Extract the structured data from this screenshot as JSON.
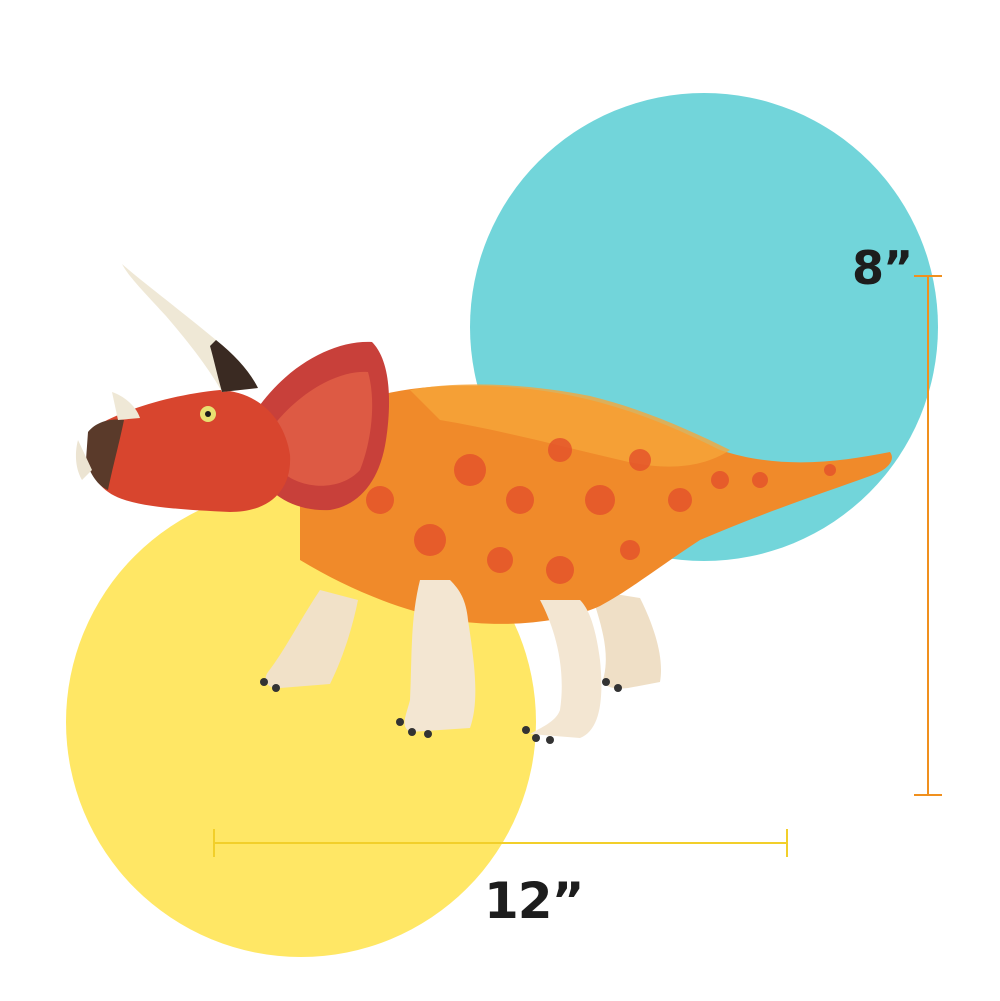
{
  "colors": {
    "teal_circle": "#72d5da",
    "yellow_circle": "#ffe765",
    "height_rule": "#f0901e",
    "width_rule": "#f2cf2a",
    "dino_body": "#f08a2a",
    "dino_spots": "#e4502a",
    "dino_head": "#d8452e",
    "dino_frill": "#c8403a",
    "dino_legs": "#f3e6d2",
    "dino_horn": "#efe8d6"
  },
  "dimensions": {
    "height_label": "8”",
    "width_label": "12”"
  },
  "figure": {
    "subject": "triceratops-toy"
  }
}
